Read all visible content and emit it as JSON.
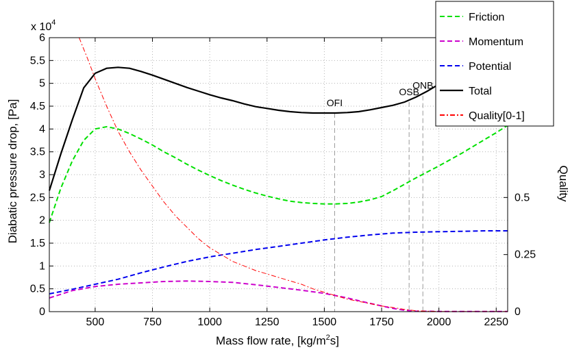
{
  "chart_data": {
    "type": "line",
    "xlabel": "Mass flow rate, [kg/m",
    "xlabel_sup": "2",
    "xlabel_end": "s]",
    "ylabel_left": "Diabatic pressure drop, [Pa]",
    "ylabel_right": "Quality",
    "left_exponent_base": "x 10",
    "left_exponent_power": "4",
    "xlim": [
      300,
      2300
    ],
    "ylim_left": [
      0,
      60000
    ],
    "ylim_right": [
      0,
      1.2
    ],
    "x_ticks": [
      500,
      750,
      1000,
      1250,
      1500,
      1750,
      2000,
      2250
    ],
    "x_tick_labels": [
      "500",
      "750",
      "1000",
      "1250",
      "1500",
      "1750",
      "2000",
      "2250"
    ],
    "y_ticks_left": [
      0,
      5000,
      10000,
      15000,
      20000,
      25000,
      30000,
      35000,
      40000,
      45000,
      50000,
      55000,
      60000
    ],
    "y_tick_labels_left": [
      "0",
      "0.5",
      "1",
      "1.5",
      "2",
      "2.5",
      "3",
      "3.5",
      "4",
      "4.5",
      "5",
      "5.5",
      "6"
    ],
    "y_ticks_right": [
      0,
      0.25,
      0.5
    ],
    "y_tick_labels_right": [
      "0",
      "0.25",
      "0.5"
    ],
    "grid": true,
    "legend_position": "top-right",
    "series": [
      {
        "name": "Friction",
        "color": "#00e000",
        "dash": "dashed",
        "axis": "left",
        "x": [
          300,
          350,
          400,
          450,
          500,
          550,
          600,
          650,
          700,
          750,
          800,
          850,
          900,
          950,
          1000,
          1050,
          1100,
          1150,
          1200,
          1250,
          1300,
          1350,
          1400,
          1450,
          1500,
          1550,
          1600,
          1650,
          1700,
          1750,
          1800,
          1850,
          1900,
          1950,
          2000,
          2050,
          2100,
          2150,
          2200,
          2250,
          2300
        ],
        "y": [
          19500,
          27000,
          33000,
          37500,
          40000,
          40500,
          40000,
          39000,
          37800,
          36500,
          35000,
          33700,
          32300,
          31000,
          29800,
          28700,
          27700,
          26800,
          26000,
          25300,
          24700,
          24200,
          23900,
          23700,
          23600,
          23600,
          23700,
          24000,
          24500,
          25200,
          26500,
          27900,
          29300,
          30600,
          31900,
          33300,
          34700,
          36200,
          37700,
          39200,
          40800
        ]
      },
      {
        "name": "Momentum",
        "color": "#cc00cc",
        "dash": "dashed",
        "axis": "left",
        "x": [
          300,
          400,
          500,
          600,
          700,
          800,
          900,
          1000,
          1100,
          1200,
          1300,
          1400,
          1500,
          1600,
          1700,
          1800,
          1850,
          1900,
          2000,
          2100,
          2200,
          2300
        ],
        "y": [
          3000,
          4600,
          5500,
          6000,
          6300,
          6600,
          6700,
          6600,
          6400,
          5900,
          5300,
          4700,
          4000,
          3000,
          1800,
          700,
          300,
          100,
          50,
          50,
          50,
          50
        ]
      },
      {
        "name": "Potential",
        "color": "#0000ee",
        "dash": "dashed",
        "axis": "left",
        "x": [
          300,
          400,
          500,
          600,
          700,
          800,
          900,
          1000,
          1100,
          1200,
          1300,
          1400,
          1500,
          1600,
          1700,
          1800,
          1900,
          2000,
          2100,
          2200,
          2300
        ],
        "y": [
          3900,
          4900,
          6000,
          7100,
          8500,
          9800,
          11000,
          12000,
          12800,
          13600,
          14300,
          15000,
          15700,
          16300,
          16800,
          17200,
          17400,
          17500,
          17600,
          17700,
          17700
        ]
      },
      {
        "name": "Total",
        "color": "#000000",
        "dash": "solid",
        "axis": "left",
        "x": [
          300,
          350,
          400,
          450,
          500,
          550,
          600,
          650,
          700,
          750,
          800,
          850,
          900,
          950,
          1000,
          1050,
          1100,
          1150,
          1200,
          1250,
          1300,
          1350,
          1400,
          1450,
          1500,
          1550,
          1600,
          1650,
          1700,
          1750,
          1800,
          1850,
          1900,
          1950,
          2000
        ],
        "y": [
          26500,
          34500,
          42000,
          49000,
          52200,
          53300,
          53500,
          53300,
          52600,
          51800,
          50900,
          50000,
          49100,
          48300,
          47500,
          46800,
          46200,
          45500,
          44900,
          44500,
          44100,
          43800,
          43600,
          43500,
          43500,
          43500,
          43600,
          43800,
          44200,
          44700,
          45200,
          45900,
          47000,
          48300,
          49800
        ]
      },
      {
        "name": "Quality[0-1]",
        "color": "#ff0000",
        "dash": "dashdot",
        "axis": "right",
        "x": [
          430,
          470,
          500,
          550,
          600,
          650,
          700,
          750,
          800,
          850,
          900,
          950,
          1000,
          1050,
          1100,
          1150,
          1200,
          1250,
          1300,
          1350,
          1400,
          1450,
          1500,
          1550,
          1600,
          1650,
          1700,
          1750,
          1800,
          1850,
          1900,
          1950,
          2000,
          2100,
          2200,
          2300
        ],
        "y": [
          1.2,
          1.1,
          1.02,
          0.9,
          0.79,
          0.7,
          0.62,
          0.55,
          0.48,
          0.42,
          0.37,
          0.32,
          0.28,
          0.25,
          0.22,
          0.2,
          0.18,
          0.165,
          0.15,
          0.135,
          0.12,
          0.1,
          0.085,
          0.07,
          0.055,
          0.045,
          0.035,
          0.025,
          0.018,
          0.01,
          0.004,
          0.002,
          0.001,
          0.001,
          0.001,
          0.001
        ]
      }
    ],
    "markers": [
      {
        "label": "OFI",
        "x": 1545,
        "y_top": 43500
      },
      {
        "label": "OSB",
        "x": 1870,
        "y_top": 45900
      },
      {
        "label": "ONB",
        "x": 1930,
        "y_top": 47300
      }
    ]
  }
}
